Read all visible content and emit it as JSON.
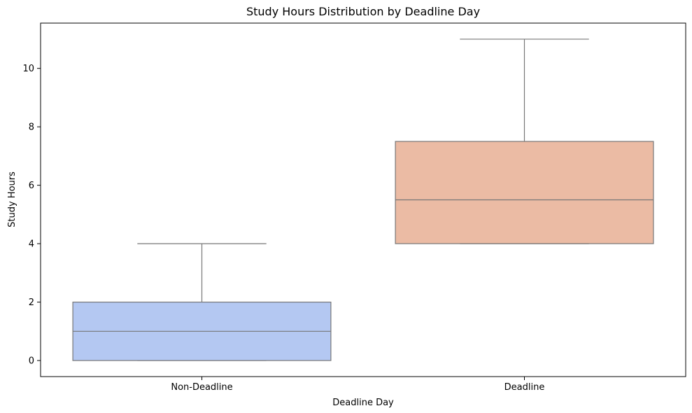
{
  "chart_data": {
    "type": "box",
    "title": "Study Hours Distribution by Deadline Day",
    "xlabel": "Deadline Day",
    "ylabel": "Study Hours",
    "ylim": [
      -0.55,
      11.55
    ],
    "yticks": [
      0,
      2,
      4,
      6,
      8,
      10
    ],
    "categories": [
      "Non-Deadline",
      "Deadline"
    ],
    "boxes": [
      {
        "category": "Non-Deadline",
        "whisker_low": 0,
        "q1": 0,
        "median": 1,
        "q3": 2,
        "whisker_high": 4,
        "color": "#b4c8f2"
      },
      {
        "category": "Deadline",
        "whisker_low": 4,
        "q1": 4,
        "median": 5.5,
        "q3": 7.5,
        "whisker_high": 11,
        "color": "#ebbba4"
      }
    ],
    "grid": false,
    "line_color": "#777777"
  }
}
